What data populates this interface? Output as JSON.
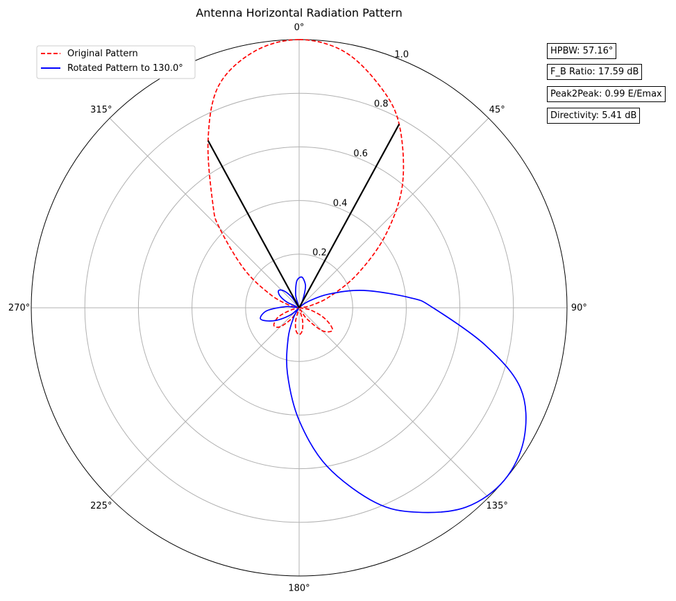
{
  "chart_data": {
    "type": "polar-line",
    "title": "Antenna Horizontal Radiation Pattern",
    "theta_zero": "N",
    "theta_direction": "clockwise",
    "rlim": [
      0,
      1.0
    ],
    "r_ticks": [
      "0.2",
      "0.4",
      "0.6",
      "0.8",
      "1.0"
    ],
    "angle_ticks": [
      "0°",
      "45°",
      "90°",
      "135°",
      "180°",
      "225°",
      "270°",
      "315°"
    ],
    "grid": true,
    "legend_position": "upper-left",
    "series": [
      {
        "name": "Original Pattern",
        "color": "#ff0000",
        "style": "dashed",
        "theta_deg": [
          0,
          10,
          20,
          28.6,
          40,
          50,
          60,
          70,
          80,
          90,
          100,
          110,
          118,
          125,
          135,
          145,
          155,
          165,
          172,
          180,
          188,
          195,
          205,
          215,
          225,
          235,
          245,
          250,
          255,
          265,
          270,
          275,
          285,
          295,
          305,
          315,
          320,
          331.4,
          340,
          350,
          360
        ],
        "r": [
          1.0,
          0.97,
          0.88,
          0.78,
          0.6,
          0.42,
          0.25,
          0.12,
          0.04,
          0.005,
          0.04,
          0.09,
          0.13,
          0.15,
          0.12,
          0.05,
          0.008,
          0.05,
          0.085,
          0.1,
          0.085,
          0.05,
          0.008,
          0.05,
          0.1,
          0.115,
          0.09,
          0.06,
          0.03,
          0.005,
          0.003,
          0.005,
          0.04,
          0.12,
          0.25,
          0.42,
          0.5,
          0.71,
          0.88,
          0.97,
          1.0
        ]
      },
      {
        "name": "Rotated Pattern to 130.0°",
        "color": "#0000ff",
        "style": "solid",
        "theta_deg": [
          130,
          140,
          150,
          158.6,
          170,
          180,
          190,
          200,
          210,
          220,
          230,
          240,
          248,
          255,
          265,
          275,
          285,
          295,
          302,
          310,
          318,
          325,
          335,
          345,
          355,
          5,
          15,
          20,
          25,
          35,
          40,
          45,
          55,
          65,
          75,
          85,
          90,
          101.4,
          110,
          120,
          130
        ],
        "r": [
          1.0,
          0.97,
          0.88,
          0.78,
          0.6,
          0.42,
          0.25,
          0.12,
          0.04,
          0.005,
          0.04,
          0.09,
          0.13,
          0.15,
          0.12,
          0.05,
          0.008,
          0.05,
          0.085,
          0.1,
          0.085,
          0.05,
          0.008,
          0.05,
          0.1,
          0.115,
          0.09,
          0.06,
          0.03,
          0.005,
          0.003,
          0.005,
          0.04,
          0.12,
          0.25,
          0.42,
          0.5,
          0.71,
          0.88,
          0.97,
          1.0
        ]
      }
    ],
    "hpbw_lines": {
      "color": "#000000",
      "segments": [
        {
          "theta_deg": 28.6,
          "r": 0.78
        },
        {
          "theta_deg": 331.4,
          "r": 0.71
        }
      ]
    },
    "annotations": [
      "HPBW: 57.16°",
      "F_B Ratio: 17.59 dB",
      "Peak2Peak: 0.99 E/Emax",
      "Directivity: 5.41 dB"
    ]
  }
}
